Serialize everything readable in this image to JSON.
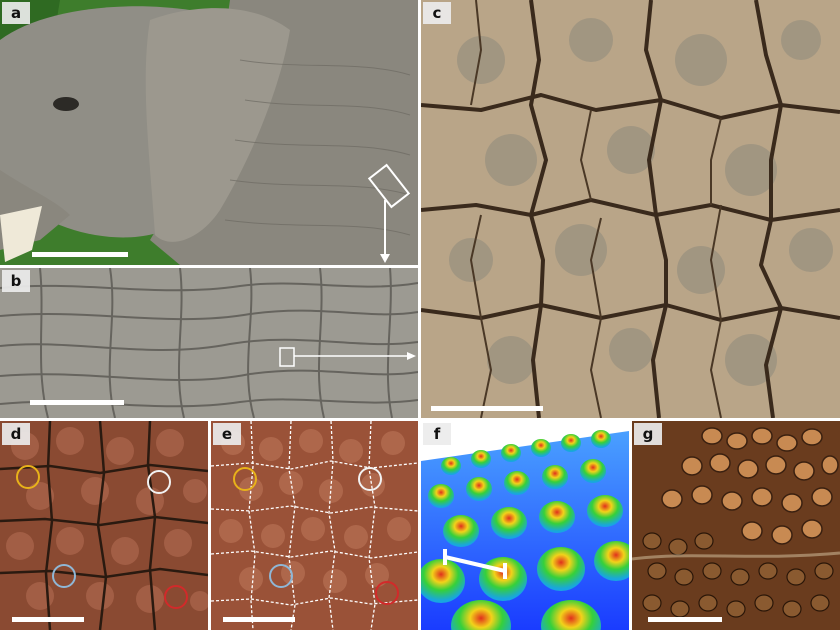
{
  "figure": {
    "panels": [
      {
        "id": "a",
        "label": "a",
        "content": "elephant"
      },
      {
        "id": "b",
        "label": "b",
        "content": "elephant-skin-closeup"
      },
      {
        "id": "c",
        "label": "c",
        "content": "cracked-mud"
      },
      {
        "id": "d",
        "label": "d",
        "content": "skin-micrograph"
      },
      {
        "id": "e",
        "label": "e",
        "content": "skin-micrograph-segmented"
      },
      {
        "id": "f",
        "label": "f",
        "content": "3d-height-map"
      },
      {
        "id": "g",
        "label": "g",
        "content": "skin-papillae"
      }
    ],
    "colors": {
      "skin_gray": "#8f8d85",
      "mud": "#b9a588",
      "crack": "#3a2a1c",
      "micro_brown": "#8a4a32",
      "grass": "#3e7d2c",
      "circle_yellow": "#e8b21a",
      "circle_white": "#f2f2f2",
      "circle_blue": "#8fb7d6",
      "circle_red": "#d22a2a",
      "heightmap_blue": "#1a3cff"
    }
  }
}
